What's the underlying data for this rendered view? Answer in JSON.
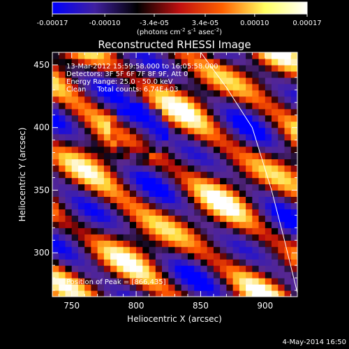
{
  "chart_data": {
    "type": "heatmap",
    "title": "Reconstructed RHESSI Image",
    "xlabel": "Heliocentric X (arcsec)",
    "ylabel": "Heliocentric Y (arcsec)",
    "xlim": [
      735,
      925
    ],
    "ylim": [
      265,
      460
    ],
    "x_ticks": [
      750,
      800,
      850,
      900
    ],
    "x_tick_labels": [
      "750",
      "800",
      "850",
      "900"
    ],
    "y_ticks": [
      300,
      350,
      400,
      450
    ],
    "y_tick_labels": [
      "300",
      "350",
      "400",
      "450"
    ],
    "colorbar": {
      "range": [
        -0.00017,
        0.00017
      ],
      "ticks": [
        -0.00017,
        -0.0001,
        -3.4e-05,
        3.4e-05,
        0.0001,
        0.00017
      ],
      "tick_labels": [
        "-0.00017",
        "-0.00010",
        "-3.4e-05",
        "3.4e-05",
        "0.00010",
        "0.00017"
      ],
      "unit_label": "(photons cm",
      "unit_sup1": "-2",
      "unit_mid": " s",
      "unit_sup2": "-1",
      "unit_mid2": " asec",
      "unit_sup3": "-2",
      "unit_end": ")",
      "colors": [
        "#0000ff",
        "#4020a0",
        "#000000",
        "#c01010",
        "#ff6000",
        "#ffff60",
        "#ffffff"
      ]
    },
    "annotations": [
      "13-Mar-2012 15:59:58.000 to 16:05:58.000",
      "Detectors: 3F 5F 6F 7F 8F 9F, Att 0",
      "Energy Range: 25.0 - 50.0 keV",
      "Clean     Total counts: 6.74E+03"
    ],
    "peak_label": "Position of Peak = [866,435]",
    "peak_position": [
      866,
      435
    ],
    "limb_points": [
      [
        850,
        460
      ],
      [
        870,
        432
      ],
      [
        890,
        400
      ],
      [
        905,
        350
      ],
      [
        915,
        310
      ],
      [
        925,
        268
      ]
    ],
    "grid": false
  },
  "footer_date": "4-May-2014 16:50"
}
